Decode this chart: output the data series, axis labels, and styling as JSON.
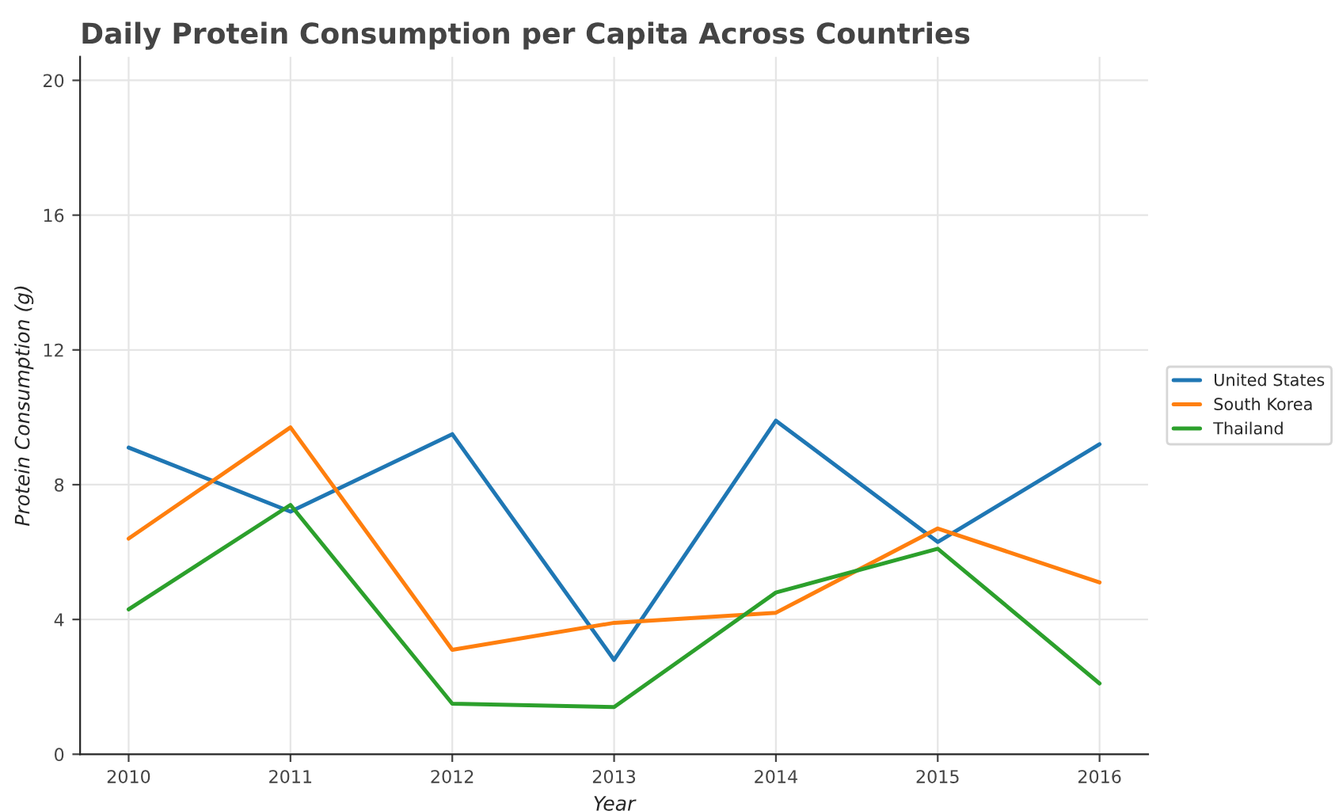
{
  "chart_data": {
    "type": "line",
    "title": "Daily Protein Consumption per Capita Across Countries",
    "xlabel": "Year",
    "ylabel": "Protein Consumption (g)",
    "x": [
      2010,
      2011,
      2012,
      2013,
      2014,
      2015,
      2016
    ],
    "series": [
      {
        "name": "United States",
        "color": "#1f77b4",
        "values": [
          9.1,
          7.2,
          9.5,
          2.8,
          9.9,
          6.3,
          9.2
        ]
      },
      {
        "name": "South Korea",
        "color": "#ff7f0e",
        "values": [
          6.4,
          9.7,
          3.1,
          3.9,
          4.2,
          6.7,
          5.1
        ]
      },
      {
        "name": "Thailand",
        "color": "#2ca02c",
        "values": [
          4.3,
          7.4,
          1.5,
          1.4,
          4.8,
          6.1,
          2.1
        ]
      }
    ],
    "xlim": [
      2009.7,
      2016.3
    ],
    "xticks": [
      2010,
      2011,
      2012,
      2013,
      2014,
      2015,
      2016
    ],
    "ylim": [
      0,
      20.7
    ],
    "yticks": [
      0,
      4,
      8,
      12,
      16,
      20
    ],
    "grid": true,
    "legend": "right",
    "line_style": "solid",
    "marker": "none"
  }
}
